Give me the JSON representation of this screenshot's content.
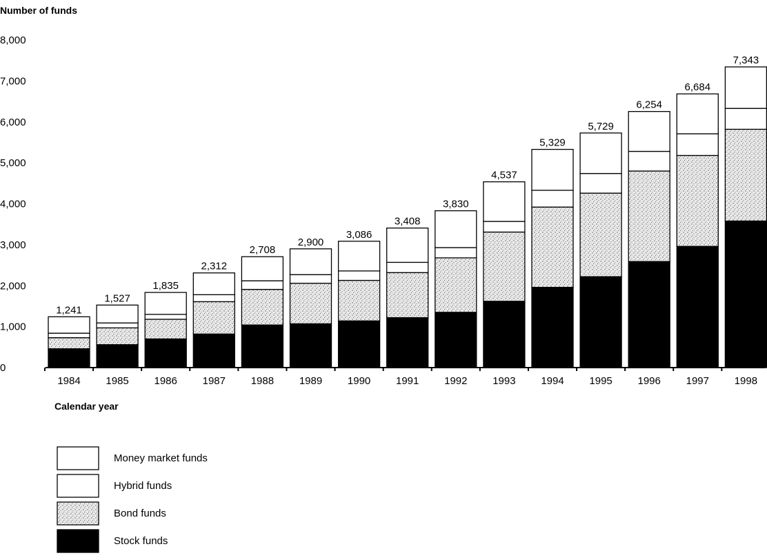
{
  "chart_data": {
    "type": "bar",
    "stacked": true,
    "ylabel": "Number of funds",
    "xlabel": "Calendar year",
    "ylim": [
      0,
      8000
    ],
    "yticks": [
      "0",
      "1,000",
      "2,000",
      "3,000",
      "4,000",
      "5,000",
      "6,000",
      "7,000",
      "8,000"
    ],
    "ytick_values": [
      0,
      1000,
      2000,
      3000,
      4000,
      5000,
      6000,
      7000,
      8000
    ],
    "categories": [
      "1984",
      "1985",
      "1986",
      "1987",
      "1988",
      "1989",
      "1990",
      "1991",
      "1992",
      "1993",
      "1994",
      "1995",
      "1996",
      "1997",
      "1998"
    ],
    "totals": [
      1241,
      1527,
      1835,
      2312,
      2708,
      2900,
      3086,
      3408,
      3830,
      4537,
      5329,
      5729,
      6254,
      6684,
      7343
    ],
    "total_labels": [
      "1,241",
      "1,527",
      "1,835",
      "2,312",
      "2,708",
      "2,900",
      "3,086",
      "3,408",
      "3,830",
      "4,537",
      "5,329",
      "5,729",
      "6,254",
      "6,684",
      "7,343"
    ],
    "series": [
      {
        "name": "Stock funds",
        "values": [
          460,
          560,
          700,
          820,
          1040,
          1070,
          1140,
          1220,
          1350,
          1620,
          1960,
          2220,
          2590,
          2960,
          3580
        ]
      },
      {
        "name": "Bond funds",
        "values": [
          270,
          410,
          480,
          790,
          870,
          990,
          990,
          1100,
          1330,
          1690,
          1960,
          2040,
          2210,
          2220,
          2240
        ]
      },
      {
        "name": "Hybrid funds",
        "values": [
          110,
          120,
          120,
          170,
          210,
          210,
          230,
          250,
          250,
          260,
          410,
          480,
          480,
          530,
          510
        ]
      },
      {
        "name": "Money market funds",
        "values": [
          401,
          437,
          535,
          532,
          588,
          630,
          726,
          838,
          900,
          967,
          999,
          989,
          974,
          974,
          1013
        ]
      }
    ],
    "colors": {
      "Stock funds": "#000000",
      "Bond funds": "#d9d9d9",
      "Hybrid funds": "#ffffff",
      "Money market funds": "#ffffff"
    },
    "legend": {
      "placement": "bottom-left",
      "items": [
        "Money market funds",
        "Hybrid funds",
        "Bond funds",
        "Stock funds"
      ]
    },
    "grid": false
  }
}
